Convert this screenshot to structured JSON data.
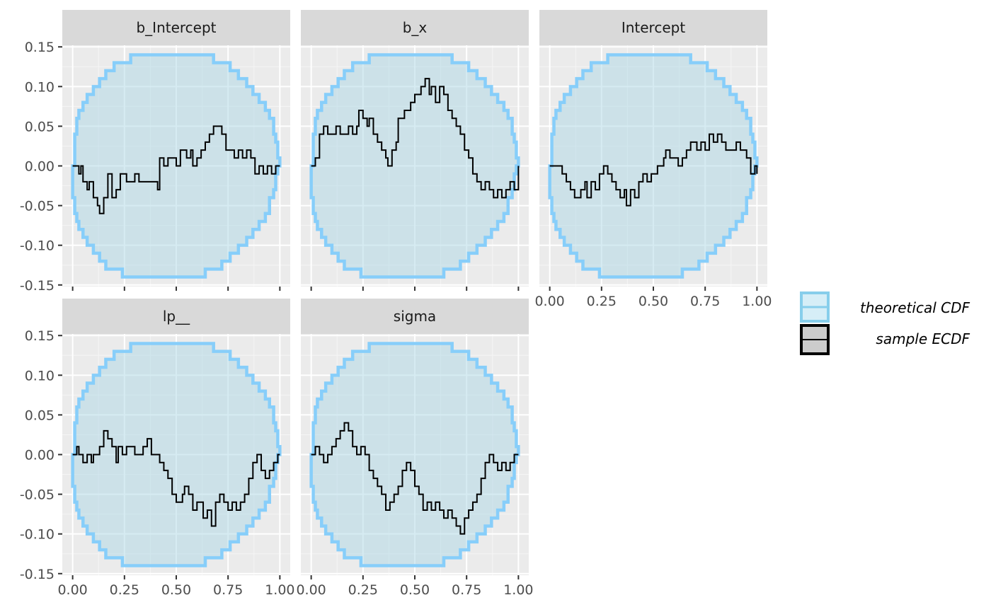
{
  "chart_data": {
    "type": "line",
    "x_ticks": [
      "0.00",
      "0.25",
      "0.50",
      "0.75",
      "1.00"
    ],
    "y_ticks": [
      "0.15",
      "0.10",
      "0.05",
      "0.00",
      "-0.05",
      "-0.10",
      "-0.15"
    ],
    "xlim": [
      -0.05,
      1.05
    ],
    "ylim": [
      -0.152,
      0.152
    ],
    "grid": true,
    "legend_position": "right",
    "legend": [
      {
        "label": "theoretical CDF",
        "color": "#87ceeb",
        "fill": "#d6eef7"
      },
      {
        "label": "sample ECDF",
        "color": "#000000",
        "fill": "#cccccc"
      }
    ],
    "envelope": {
      "color": "#87cefa",
      "fill": "#add8e6",
      "x": [
        0.0,
        0.01,
        0.02,
        0.03,
        0.05,
        0.07,
        0.1,
        0.13,
        0.16,
        0.2,
        0.24,
        0.28,
        0.32,
        0.36,
        0.4,
        0.5,
        0.6,
        0.64,
        0.68,
        0.72,
        0.76,
        0.8,
        0.84,
        0.87,
        0.9,
        0.93,
        0.95,
        0.97,
        0.98,
        0.99,
        1.0
      ],
      "upper": [
        0.0,
        0.04,
        0.06,
        0.07,
        0.08,
        0.09,
        0.1,
        0.11,
        0.12,
        0.13,
        0.13,
        0.14,
        0.14,
        0.14,
        0.14,
        0.14,
        0.14,
        0.14,
        0.13,
        0.13,
        0.12,
        0.11,
        0.1,
        0.09,
        0.08,
        0.07,
        0.06,
        0.04,
        0.03,
        0.01,
        0.0
      ],
      "lower": [
        0.0,
        -0.04,
        -0.06,
        -0.07,
        -0.08,
        -0.09,
        -0.1,
        -0.11,
        -0.12,
        -0.13,
        -0.13,
        -0.14,
        -0.14,
        -0.14,
        -0.14,
        -0.14,
        -0.14,
        -0.14,
        -0.13,
        -0.13,
        -0.12,
        -0.11,
        -0.1,
        -0.09,
        -0.08,
        -0.07,
        -0.06,
        -0.04,
        -0.03,
        -0.01,
        0.0
      ]
    },
    "panels": [
      {
        "title": "b_Intercept",
        "values": [
          [
            0,
            0
          ],
          [
            0.02,
            0
          ],
          [
            0.03,
            -0.01
          ],
          [
            0.04,
            0
          ],
          [
            0.05,
            -0.02
          ],
          [
            0.07,
            -0.03
          ],
          [
            0.08,
            -0.02
          ],
          [
            0.1,
            -0.04
          ],
          [
            0.12,
            -0.05
          ],
          [
            0.13,
            -0.06
          ],
          [
            0.15,
            -0.04
          ],
          [
            0.17,
            -0.01
          ],
          [
            0.19,
            -0.04
          ],
          [
            0.21,
            -0.03
          ],
          [
            0.23,
            -0.01
          ],
          [
            0.26,
            -0.02
          ],
          [
            0.3,
            -0.01
          ],
          [
            0.32,
            -0.02
          ],
          [
            0.4,
            -0.02
          ],
          [
            0.41,
            -0.03
          ],
          [
            0.42,
            0.01
          ],
          [
            0.44,
            0
          ],
          [
            0.46,
            0.01
          ],
          [
            0.5,
            0
          ],
          [
            0.52,
            0.02
          ],
          [
            0.55,
            0.01
          ],
          [
            0.57,
            0.02
          ],
          [
            0.58,
            0
          ],
          [
            0.6,
            0.01
          ],
          [
            0.62,
            0.02
          ],
          [
            0.64,
            0.03
          ],
          [
            0.66,
            0.04
          ],
          [
            0.68,
            0.05
          ],
          [
            0.72,
            0.04
          ],
          [
            0.74,
            0.02
          ],
          [
            0.76,
            0.02
          ],
          [
            0.78,
            0.01
          ],
          [
            0.8,
            0.02
          ],
          [
            0.82,
            0.01
          ],
          [
            0.84,
            0.02
          ],
          [
            0.86,
            0.01
          ],
          [
            0.88,
            -0.01
          ],
          [
            0.9,
            0
          ],
          [
            0.92,
            -0.01
          ],
          [
            0.94,
            0
          ],
          [
            0.96,
            -0.01
          ],
          [
            0.98,
            0
          ],
          [
            1.0,
            0
          ]
        ]
      },
      {
        "title": "b_x",
        "values": [
          [
            0,
            0
          ],
          [
            0.02,
            0.01
          ],
          [
            0.04,
            0.04
          ],
          [
            0.06,
            0.05
          ],
          [
            0.08,
            0.04
          ],
          [
            0.12,
            0.05
          ],
          [
            0.14,
            0.04
          ],
          [
            0.18,
            0.05
          ],
          [
            0.2,
            0.04
          ],
          [
            0.22,
            0.05
          ],
          [
            0.23,
            0.07
          ],
          [
            0.25,
            0.06
          ],
          [
            0.27,
            0.05
          ],
          [
            0.28,
            0.06
          ],
          [
            0.3,
            0.04
          ],
          [
            0.32,
            0.03
          ],
          [
            0.34,
            0.02
          ],
          [
            0.36,
            0.01
          ],
          [
            0.37,
            0
          ],
          [
            0.39,
            0.02
          ],
          [
            0.41,
            0.03
          ],
          [
            0.42,
            0.06
          ],
          [
            0.45,
            0.07
          ],
          [
            0.48,
            0.08
          ],
          [
            0.5,
            0.09
          ],
          [
            0.53,
            0.1
          ],
          [
            0.55,
            0.11
          ],
          [
            0.57,
            0.09
          ],
          [
            0.58,
            0.1
          ],
          [
            0.6,
            0.08
          ],
          [
            0.62,
            0.1
          ],
          [
            0.64,
            0.09
          ],
          [
            0.66,
            0.07
          ],
          [
            0.68,
            0.06
          ],
          [
            0.7,
            0.05
          ],
          [
            0.72,
            0.04
          ],
          [
            0.74,
            0.02
          ],
          [
            0.76,
            0.01
          ],
          [
            0.78,
            -0.01
          ],
          [
            0.8,
            -0.02
          ],
          [
            0.82,
            -0.03
          ],
          [
            0.84,
            -0.02
          ],
          [
            0.86,
            -0.03
          ],
          [
            0.88,
            -0.04
          ],
          [
            0.9,
            -0.03
          ],
          [
            0.92,
            -0.04
          ],
          [
            0.94,
            -0.03
          ],
          [
            0.96,
            -0.02
          ],
          [
            0.98,
            -0.03
          ],
          [
            1.0,
            0
          ]
        ]
      },
      {
        "title": "Intercept",
        "values": [
          [
            0,
            0
          ],
          [
            0.05,
            0
          ],
          [
            0.06,
            -0.01
          ],
          [
            0.08,
            -0.02
          ],
          [
            0.1,
            -0.03
          ],
          [
            0.12,
            -0.04
          ],
          [
            0.15,
            -0.03
          ],
          [
            0.17,
            -0.02
          ],
          [
            0.18,
            -0.04
          ],
          [
            0.2,
            -0.02
          ],
          [
            0.22,
            -0.03
          ],
          [
            0.24,
            -0.01
          ],
          [
            0.26,
            0
          ],
          [
            0.28,
            -0.01
          ],
          [
            0.3,
            -0.02
          ],
          [
            0.32,
            -0.03
          ],
          [
            0.34,
            -0.04
          ],
          [
            0.36,
            -0.03
          ],
          [
            0.37,
            -0.05
          ],
          [
            0.39,
            -0.03
          ],
          [
            0.41,
            -0.04
          ],
          [
            0.43,
            -0.02
          ],
          [
            0.45,
            -0.01
          ],
          [
            0.47,
            -0.02
          ],
          [
            0.49,
            -0.01
          ],
          [
            0.52,
            0
          ],
          [
            0.55,
            0.01
          ],
          [
            0.56,
            0.02
          ],
          [
            0.58,
            0.01
          ],
          [
            0.6,
            0.01
          ],
          [
            0.62,
            0
          ],
          [
            0.64,
            0.01
          ],
          [
            0.66,
            0.02
          ],
          [
            0.68,
            0.03
          ],
          [
            0.71,
            0.02
          ],
          [
            0.73,
            0.03
          ],
          [
            0.75,
            0.02
          ],
          [
            0.77,
            0.04
          ],
          [
            0.79,
            0.03
          ],
          [
            0.81,
            0.04
          ],
          [
            0.83,
            0.03
          ],
          [
            0.85,
            0.02
          ],
          [
            0.9,
            0.03
          ],
          [
            0.92,
            0.02
          ],
          [
            0.95,
            0.01
          ],
          [
            0.97,
            -0.01
          ],
          [
            0.99,
            0
          ],
          [
            1.0,
            -0.01
          ]
        ]
      },
      {
        "title": "lp__",
        "values": [
          [
            0,
            0
          ],
          [
            0.02,
            0.01
          ],
          [
            0.03,
            0
          ],
          [
            0.05,
            -0.01
          ],
          [
            0.07,
            0
          ],
          [
            0.09,
            -0.01
          ],
          [
            0.1,
            0
          ],
          [
            0.13,
            0.01
          ],
          [
            0.15,
            0.03
          ],
          [
            0.17,
            0.02
          ],
          [
            0.19,
            0.01
          ],
          [
            0.21,
            -0.01
          ],
          [
            0.22,
            0.01
          ],
          [
            0.24,
            0
          ],
          [
            0.26,
            0.01
          ],
          [
            0.3,
            0
          ],
          [
            0.34,
            0.01
          ],
          [
            0.36,
            0.02
          ],
          [
            0.38,
            0
          ],
          [
            0.4,
            0
          ],
          [
            0.42,
            -0.01
          ],
          [
            0.44,
            -0.02
          ],
          [
            0.46,
            -0.03
          ],
          [
            0.48,
            -0.05
          ],
          [
            0.5,
            -0.06
          ],
          [
            0.53,
            -0.05
          ],
          [
            0.54,
            -0.04
          ],
          [
            0.56,
            -0.05
          ],
          [
            0.58,
            -0.07
          ],
          [
            0.6,
            -0.06
          ],
          [
            0.63,
            -0.08
          ],
          [
            0.65,
            -0.07
          ],
          [
            0.67,
            -0.09
          ],
          [
            0.69,
            -0.06
          ],
          [
            0.71,
            -0.05
          ],
          [
            0.73,
            -0.06
          ],
          [
            0.75,
            -0.07
          ],
          [
            0.77,
            -0.06
          ],
          [
            0.79,
            -0.07
          ],
          [
            0.81,
            -0.06
          ],
          [
            0.83,
            -0.05
          ],
          [
            0.85,
            -0.03
          ],
          [
            0.87,
            -0.01
          ],
          [
            0.89,
            0
          ],
          [
            0.91,
            -0.02
          ],
          [
            0.93,
            -0.03
          ],
          [
            0.95,
            -0.02
          ],
          [
            0.97,
            -0.01
          ],
          [
            0.99,
            0
          ],
          [
            1.0,
            0
          ]
        ]
      },
      {
        "title": "sigma",
        "values": [
          [
            0,
            0
          ],
          [
            0.02,
            0.01
          ],
          [
            0.04,
            0
          ],
          [
            0.06,
            -0.01
          ],
          [
            0.08,
            0
          ],
          [
            0.1,
            0.01
          ],
          [
            0.12,
            0.02
          ],
          [
            0.14,
            0.03
          ],
          [
            0.16,
            0.04
          ],
          [
            0.18,
            0.03
          ],
          [
            0.2,
            0.01
          ],
          [
            0.22,
            0
          ],
          [
            0.24,
            0.01
          ],
          [
            0.26,
            0
          ],
          [
            0.28,
            -0.02
          ],
          [
            0.3,
            -0.03
          ],
          [
            0.32,
            -0.04
          ],
          [
            0.34,
            -0.05
          ],
          [
            0.36,
            -0.07
          ],
          [
            0.38,
            -0.06
          ],
          [
            0.4,
            -0.05
          ],
          [
            0.42,
            -0.04
          ],
          [
            0.44,
            -0.02
          ],
          [
            0.46,
            -0.01
          ],
          [
            0.48,
            -0.02
          ],
          [
            0.5,
            -0.04
          ],
          [
            0.52,
            -0.05
          ],
          [
            0.54,
            -0.07
          ],
          [
            0.56,
            -0.06
          ],
          [
            0.58,
            -0.07
          ],
          [
            0.6,
            -0.06
          ],
          [
            0.62,
            -0.07
          ],
          [
            0.64,
            -0.08
          ],
          [
            0.66,
            -0.07
          ],
          [
            0.68,
            -0.08
          ],
          [
            0.7,
            -0.09
          ],
          [
            0.72,
            -0.1
          ],
          [
            0.74,
            -0.08
          ],
          [
            0.76,
            -0.07
          ],
          [
            0.78,
            -0.06
          ],
          [
            0.8,
            -0.05
          ],
          [
            0.82,
            -0.03
          ],
          [
            0.84,
            -0.01
          ],
          [
            0.86,
            0
          ],
          [
            0.88,
            -0.01
          ],
          [
            0.9,
            -0.02
          ],
          [
            0.92,
            -0.01
          ],
          [
            0.94,
            -0.02
          ],
          [
            0.96,
            -0.01
          ],
          [
            0.98,
            0
          ],
          [
            1.0,
            0
          ]
        ]
      }
    ]
  }
}
